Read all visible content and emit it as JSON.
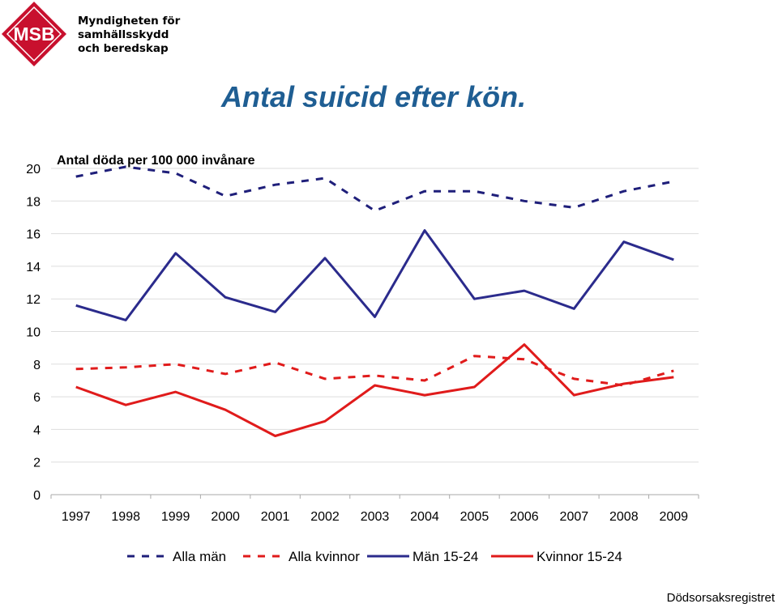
{
  "logo": {
    "badge_text": "MSB",
    "line1": "Myndigheten för",
    "line2": "samhällsskydd",
    "line3": "och beredskap",
    "color": "#c8102e"
  },
  "title": "Antal suicid efter kön.",
  "source": "Dödsorsaksregistret",
  "chart_data": {
    "type": "line",
    "ylabel": "Antal döda per 100 000 invånare",
    "xlabel": "",
    "x": [
      "1997",
      "1998",
      "1999",
      "2000",
      "2001",
      "2002",
      "2003",
      "2004",
      "2005",
      "2006",
      "2007",
      "2008",
      "2009"
    ],
    "ylim": [
      0,
      20
    ],
    "yticks": [
      0,
      2,
      4,
      6,
      8,
      10,
      12,
      14,
      16,
      18,
      20
    ],
    "grid": true,
    "legend_position": "bottom",
    "series": [
      {
        "name": "Alla män",
        "color": "#1f1f7a",
        "dash": true,
        "values": [
          19.5,
          20.1,
          19.7,
          18.3,
          19.0,
          19.4,
          17.4,
          18.6,
          18.6,
          18.0,
          17.6,
          18.6,
          19.2
        ]
      },
      {
        "name": "Alla kvinnor",
        "color": "#e01b1b",
        "dash": true,
        "values": [
          7.7,
          7.8,
          8.0,
          7.4,
          8.1,
          7.1,
          7.3,
          7.0,
          8.5,
          8.3,
          7.1,
          6.7,
          7.6
        ]
      },
      {
        "name": "Män 15-24",
        "color": "#2b2b8c",
        "dash": false,
        "values": [
          11.6,
          10.7,
          14.8,
          12.1,
          11.2,
          14.5,
          10.9,
          16.2,
          12.0,
          12.5,
          11.4,
          15.5,
          14.4
        ]
      },
      {
        "name": "Kvinnor 15-24",
        "color": "#e01b1b",
        "dash": false,
        "values": [
          6.6,
          5.5,
          6.3,
          5.2,
          3.6,
          4.5,
          6.7,
          6.1,
          6.6,
          9.2,
          6.1,
          6.8,
          7.2
        ]
      }
    ]
  }
}
